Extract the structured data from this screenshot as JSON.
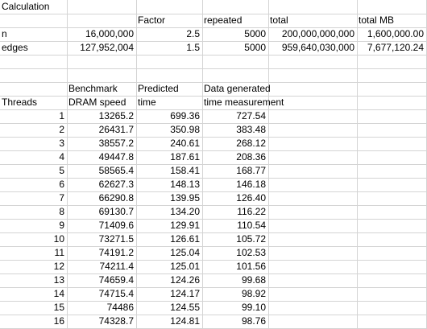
{
  "sheet": {
    "title": "Calculation",
    "header1": {
      "factor": "Factor",
      "repeated": "repeated",
      "total": "total",
      "total_mb": "total MB"
    },
    "n_row": {
      "label": "n",
      "value": "16,000,000",
      "factor": "2.5",
      "repeated": "5000",
      "total": "200,000,000,000",
      "total_mb": "1,600,000.00"
    },
    "edges_row": {
      "label": "edges",
      "value": "127,952,004",
      "factor": "1.5",
      "repeated": "5000",
      "total": "959,640,030,000",
      "total_mb": "7,677,120.24"
    },
    "header2": {
      "benchmark": "Benchmark",
      "predicted": "Predicted",
      "data_generated": "Data generated",
      "threads": "Threads",
      "dram_speed": "DRAM speed",
      "time": "time",
      "time_measurement": "time measurement"
    },
    "rows": [
      {
        "threads": "1",
        "dram": "13265.2",
        "predicted": "699.36",
        "measured": "727.54"
      },
      {
        "threads": "2",
        "dram": "26431.7",
        "predicted": "350.98",
        "measured": "383.48"
      },
      {
        "threads": "3",
        "dram": "38557.2",
        "predicted": "240.61",
        "measured": "268.12"
      },
      {
        "threads": "4",
        "dram": "49447.8",
        "predicted": "187.61",
        "measured": "208.36"
      },
      {
        "threads": "5",
        "dram": "58565.4",
        "predicted": "158.41",
        "measured": "168.77"
      },
      {
        "threads": "6",
        "dram": "62627.3",
        "predicted": "148.13",
        "measured": "146.18"
      },
      {
        "threads": "7",
        "dram": "66290.8",
        "predicted": "139.95",
        "measured": "126.40"
      },
      {
        "threads": "8",
        "dram": "69130.7",
        "predicted": "134.20",
        "measured": "116.22"
      },
      {
        "threads": "9",
        "dram": "71409.6",
        "predicted": "129.91",
        "measured": "110.54"
      },
      {
        "threads": "10",
        "dram": "73271.5",
        "predicted": "126.61",
        "measured": "105.72"
      },
      {
        "threads": "11",
        "dram": "74191.2",
        "predicted": "125.04",
        "measured": "102.53"
      },
      {
        "threads": "12",
        "dram": "74211.4",
        "predicted": "125.01",
        "measured": "101.56"
      },
      {
        "threads": "13",
        "dram": "74659.4",
        "predicted": "124.26",
        "measured": "99.68"
      },
      {
        "threads": "14",
        "dram": "74715.4",
        "predicted": "124.17",
        "measured": "98.92"
      },
      {
        "threads": "15",
        "dram": "74486",
        "predicted": "124.55",
        "measured": "99.10"
      },
      {
        "threads": "16",
        "dram": "74328.7",
        "predicted": "124.81",
        "measured": "98.76"
      }
    ]
  }
}
